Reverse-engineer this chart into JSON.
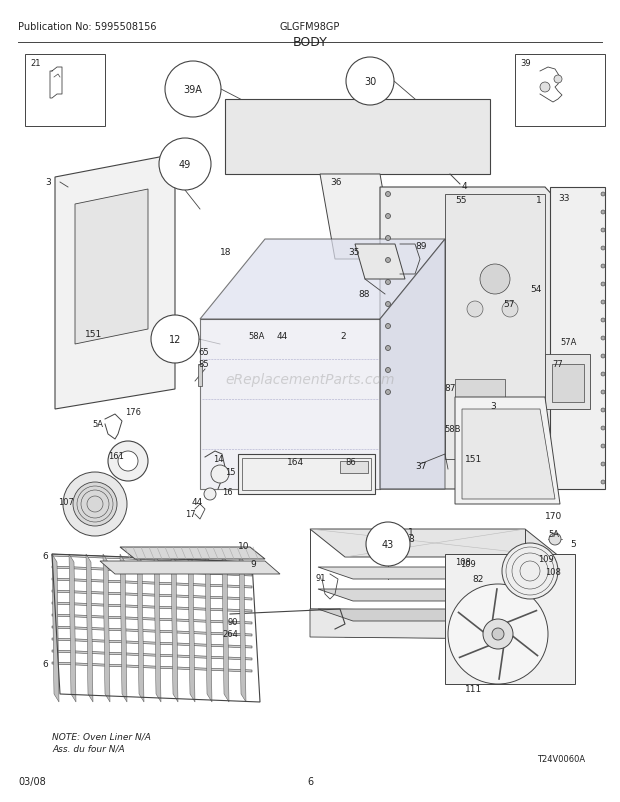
{
  "title": "BODY",
  "pub_no": "Publication No: 5995508156",
  "model": "GLGFM98GP",
  "date": "03/08",
  "page": "6",
  "watermark": "eReplacementParts.com",
  "image_ref": "T24V0060A",
  "note_line1": "NOTE: Oven Liner N/A",
  "note_line2": "Ass. du four N/A",
  "bg_color": "#ffffff",
  "line_color": "#444444",
  "text_color": "#222222",
  "gray_fill": "#e8e8e8",
  "dark_gray": "#666666",
  "fig_w": 6.2,
  "fig_h": 8.03,
  "dpi": 100
}
